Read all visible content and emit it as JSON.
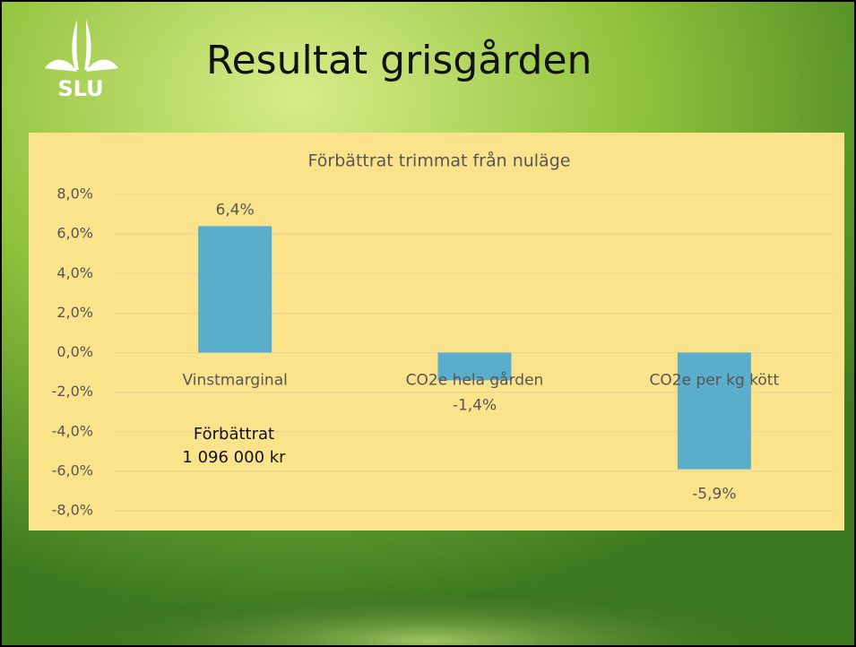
{
  "logo": "SLU",
  "chart_data": {
    "type": "bar",
    "slide_title": "Resultat grisgården",
    "title": "Förbättrat trimmat från nuläge",
    "categories": [
      "Vinstmarginal",
      "CO2e hela gården",
      "CO2e per kg kött"
    ],
    "values": [
      6.4,
      -1.4,
      -5.9
    ],
    "value_labels": [
      "6,4%",
      "-1,4%",
      "-5,9%"
    ],
    "color": "#5aaecb",
    "ylim": [
      -8,
      8
    ],
    "yticks": [
      {
        "value": -8,
        "label": "-8,0%"
      },
      {
        "value": -6,
        "label": "-6,0%"
      },
      {
        "value": -4,
        "label": "-4,0%"
      },
      {
        "value": -2,
        "label": "-2,0%"
      },
      {
        "value": 0,
        "label": "0,0%"
      },
      {
        "value": 2,
        "label": "2,0%"
      },
      {
        "value": 4,
        "label": "4,0%"
      },
      {
        "value": 6,
        "label": "6,0%"
      },
      {
        "value": 8,
        "label": "8,0%"
      }
    ],
    "grid": true,
    "annotation": [
      "Förbättrat",
      "1 096 000 kr"
    ]
  }
}
